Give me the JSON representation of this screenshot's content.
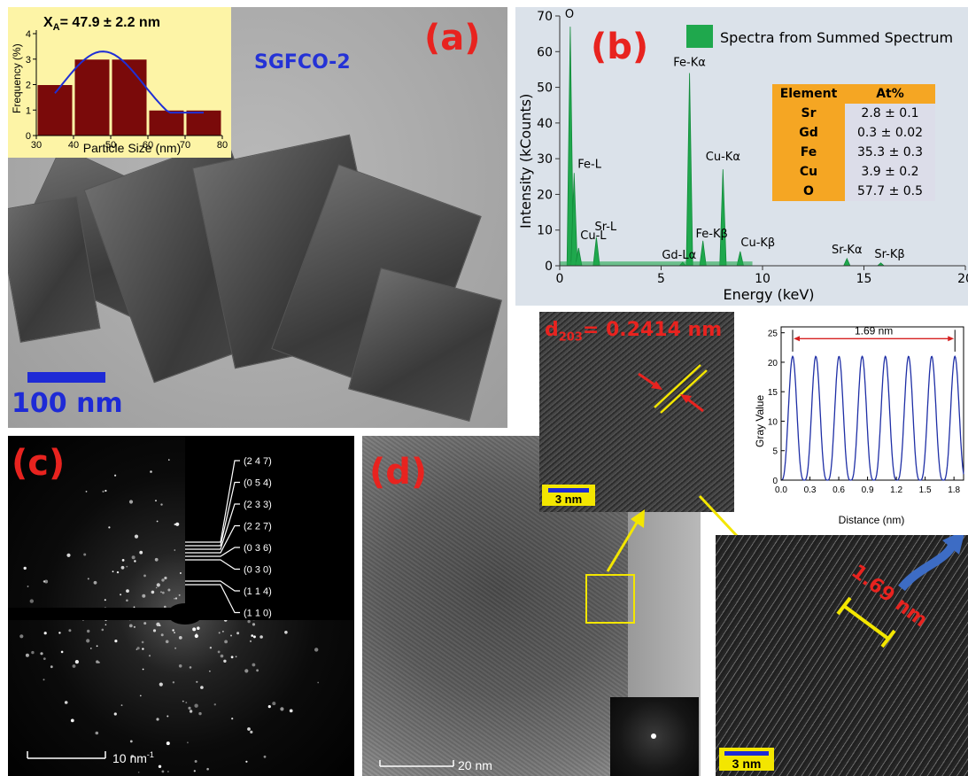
{
  "panel_a": {
    "letter": "(a)",
    "sample": "SGFCO-2",
    "scalebar": "100 nm",
    "inset": {
      "title": "X",
      "title_sub": "A",
      "title_rest": "= 47.9 ± 2.2 nm",
      "ylabel": "Frequency (%)",
      "xlabel": "Particle Size (nm)",
      "xticks": [
        "30",
        "40",
        "50",
        "60",
        "70",
        "80"
      ],
      "yticks": [
        "0",
        "1",
        "2",
        "3",
        "4"
      ]
    }
  },
  "panel_b": {
    "letter": "(b)",
    "legend": "Spectra from Summed Spectrum",
    "ylabel": "Intensity (kCounts)",
    "xlabel": "Energy (keV)",
    "xticks": [
      "0",
      "5",
      "10",
      "15",
      "20"
    ],
    "yticks": [
      "0",
      "10",
      "20",
      "30",
      "40",
      "50",
      "60",
      "70"
    ],
    "peaks": [
      "O",
      "Fe-L",
      "Cu-L",
      "Sr-L",
      "Fe-Kα",
      "Cu-Kα",
      "Fe-Kβ",
      "Gd-Lα",
      "Cu-Kβ",
      "Sr-Kα",
      "Sr-Kβ"
    ],
    "table": {
      "headers": [
        "Element",
        "At%"
      ],
      "rows": [
        {
          "el": "Sr",
          "val": "2.8 ± 0.1"
        },
        {
          "el": "Gd",
          "val": "0.3 ± 0.02"
        },
        {
          "el": "Fe",
          "val": "35.3 ± 0.3"
        },
        {
          "el": "Cu",
          "val": "3.9 ± 0.2"
        },
        {
          "el": "O",
          "val": "57.7 ± 0.5"
        }
      ]
    }
  },
  "panel_c": {
    "letter": "(c)",
    "scalebar": "10 nm",
    "scalebar_sup": "-1",
    "rings": [
      "(2 4 7)",
      "(0 5 4)",
      "(2 3 3)",
      "(2 2 7)",
      "(0 3 6)",
      "(0 3 0)",
      "(1 1 4)",
      "(1 1 0)"
    ]
  },
  "panel_d": {
    "letter": "(d)",
    "scalebar": "20 nm",
    "hr_scalebar": "3 nm",
    "d_label": "d",
    "d_sub": "203",
    "d_value": "= 0.2414 nm",
    "ifft_scalebar": "3 nm",
    "fringe_label": "1.69 nm"
  },
  "profile": {
    "ylabel": "Gray Value",
    "xlabel": "Distance (nm)",
    "span_label": "1.69 nm",
    "xticks": [
      "0.0",
      "0.3",
      "0.6",
      "0.9",
      "1.2",
      "1.5",
      "1.8"
    ],
    "yticks": [
      "0",
      "5",
      "10",
      "15",
      "20",
      "25"
    ]
  },
  "chart_data": [
    {
      "type": "bar",
      "title": "X_A = 47.9 ± 2.2 nm",
      "xlabel": "Particle Size (nm)",
      "ylabel": "Frequency (%)",
      "x": [
        35,
        45,
        55,
        65,
        75
      ],
      "bin_edges": [
        30,
        40,
        50,
        60,
        70,
        80
      ],
      "values": [
        2,
        3,
        3,
        1,
        1
      ],
      "xlim": [
        30,
        80
      ],
      "ylim": [
        0,
        4
      ],
      "fit": {
        "type": "gaussian",
        "mean": 47.9,
        "peak": 3.3
      }
    },
    {
      "type": "line",
      "title": "",
      "legend": "Spectra from Summed Spectrum",
      "xlabel": "Energy (keV)",
      "ylabel": "Intensity (kCounts)",
      "xlim": [
        0,
        20
      ],
      "ylim": [
        0,
        70
      ],
      "peaks": [
        {
          "label": "O",
          "x": 0.52,
          "y": 67
        },
        {
          "label": "Fe-L",
          "x": 0.71,
          "y": 26
        },
        {
          "label": "Cu-L",
          "x": 0.93,
          "y": 5
        },
        {
          "label": "Sr-L",
          "x": 1.81,
          "y": 8
        },
        {
          "label": "Fe-Kα",
          "x": 6.4,
          "y": 54
        },
        {
          "label": "Gd-Lα",
          "x": 6.06,
          "y": 1
        },
        {
          "label": "Fe-Kβ",
          "x": 7.06,
          "y": 7
        },
        {
          "label": "Cu-Kα",
          "x": 8.05,
          "y": 27
        },
        {
          "label": "Cu-Kβ",
          "x": 8.9,
          "y": 4
        },
        {
          "label": "Sr-Kα",
          "x": 14.16,
          "y": 2
        },
        {
          "label": "Sr-Kβ",
          "x": 15.83,
          "y": 0.8
        }
      ]
    },
    {
      "type": "line",
      "title": "",
      "xlabel": "Distance (nm)",
      "ylabel": "Gray Value",
      "xlim": [
        0,
        1.9
      ],
      "ylim": [
        0,
        26
      ],
      "period": 0.2414,
      "peak_x": [
        0.12,
        0.361,
        0.603,
        0.844,
        1.086,
        1.327,
        1.568,
        1.81
      ],
      "peak_y": 21,
      "min_y": 0
    }
  ]
}
